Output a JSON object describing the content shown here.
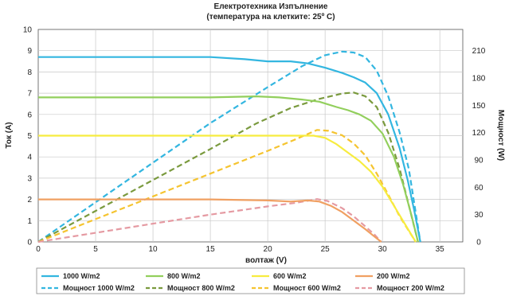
{
  "chart_data": {
    "type": "line",
    "title": "Електротехника Изпълнение",
    "subtitle": "(температура на клетките: 25º C)",
    "xlabel": "волтаж  (V)",
    "ylabel": "Ток (A)",
    "y2label": "Мощност (W)",
    "xlim": [
      0,
      37
    ],
    "ylim": [
      0,
      10
    ],
    "y2lim": [
      0,
      233.33
    ],
    "xticks": [
      "0",
      "5",
      "10",
      "15",
      "20",
      "25",
      "30",
      "35"
    ],
    "yticks": [
      "0",
      "1",
      "2",
      "3",
      "4",
      "5",
      "6",
      "7",
      "8",
      "9",
      "10"
    ],
    "y2ticks": [
      "0",
      "30",
      "60",
      "90",
      "120",
      "150",
      "180",
      "210"
    ],
    "grid": true,
    "legend_position": "bottom",
    "current_series": [
      {
        "name": "1000 W/m2",
        "color": "#33b6e0",
        "x": [
          0,
          5,
          10,
          15,
          18,
          20,
          22,
          23.5,
          25,
          26.5,
          27.5,
          28.5,
          29.5,
          30.5,
          31.5,
          32.2,
          32.8,
          33.3
        ],
        "y": [
          8.7,
          8.7,
          8.7,
          8.7,
          8.6,
          8.5,
          8.5,
          8.4,
          8.2,
          7.95,
          7.75,
          7.5,
          7.0,
          6.0,
          4.4,
          2.9,
          1.4,
          0
        ]
      },
      {
        "name": "800 W/m2",
        "color": "#92cf5c",
        "x": [
          0,
          5,
          10,
          15,
          19,
          21,
          23,
          24.5,
          26,
          27,
          28,
          29,
          30,
          31,
          31.8,
          32.5,
          33.1
        ],
        "y": [
          6.8,
          6.8,
          6.8,
          6.8,
          6.85,
          6.8,
          6.7,
          6.6,
          6.35,
          6.2,
          6.0,
          5.7,
          5.1,
          4.0,
          2.7,
          1.3,
          0
        ]
      },
      {
        "name": "600 W/m2",
        "color": "#f7ec3f",
        "x": [
          0,
          5,
          10,
          15,
          20,
          22.5,
          24,
          25,
          26,
          27,
          28,
          29,
          30,
          31,
          32,
          32.9
        ],
        "y": [
          5.0,
          5.0,
          5.0,
          5.0,
          5.0,
          5.0,
          5.0,
          4.9,
          4.6,
          4.2,
          3.8,
          3.3,
          2.6,
          1.7,
          0.8,
          0
        ]
      },
      {
        "name": "200 W/m2",
        "color": "#f0a062",
        "x": [
          0,
          5,
          10,
          15,
          20,
          22,
          23.5,
          24.5,
          25.5,
          26.5,
          27.5,
          28.5,
          29.3,
          29.9
        ],
        "y": [
          2.0,
          2.0,
          2.0,
          2.0,
          1.95,
          1.9,
          1.95,
          1.9,
          1.7,
          1.4,
          1.0,
          0.6,
          0.25,
          0
        ]
      }
    ],
    "power_series": [
      {
        "name": "Мощност 1000 W/m2",
        "color": "#33b6e0",
        "x": [
          0,
          5,
          10,
          15,
          20,
          23,
          25,
          26.5,
          27.5,
          28.5,
          29.5,
          30.5,
          31.5,
          32.3,
          33.3
        ],
        "y": [
          0,
          43.5,
          87,
          130.5,
          170,
          193,
          205,
          209,
          208,
          203,
          188,
          160,
          120,
          80,
          0
        ]
      },
      {
        "name": "Мощност 800 W/m2",
        "color": "#7a9a3e",
        "x": [
          0,
          5,
          10,
          15,
          19,
          22,
          24.5,
          26.5,
          27.5,
          28.5,
          29.5,
          30.5,
          31.5,
          32.3,
          33.1
        ],
        "y": [
          0,
          34,
          68,
          102,
          130,
          147,
          157,
          163,
          164,
          160,
          148,
          120,
          80,
          40,
          0
        ]
      },
      {
        "name": "Мощност 600 W/m2",
        "color": "#f5c430",
        "x": [
          0,
          5,
          10,
          15,
          20,
          22.5,
          24.3,
          25.3,
          26.5,
          27.5,
          28.5,
          29.5,
          30.5,
          31.5,
          32.9
        ],
        "y": [
          0,
          25,
          50,
          75,
          100,
          113,
          123,
          122,
          117,
          108,
          95,
          75,
          52,
          28,
          0
        ]
      },
      {
        "name": "Мощност 200 W/m2",
        "color": "#e59aa2",
        "x": [
          0,
          5,
          10,
          15,
          20,
          22.5,
          24.3,
          25.2,
          26.5,
          27.5,
          28.5,
          29.3,
          29.9
        ],
        "y": [
          0,
          10,
          20,
          30,
          39,
          43,
          47,
          45,
          37,
          28,
          17,
          8,
          0
        ]
      }
    ]
  }
}
